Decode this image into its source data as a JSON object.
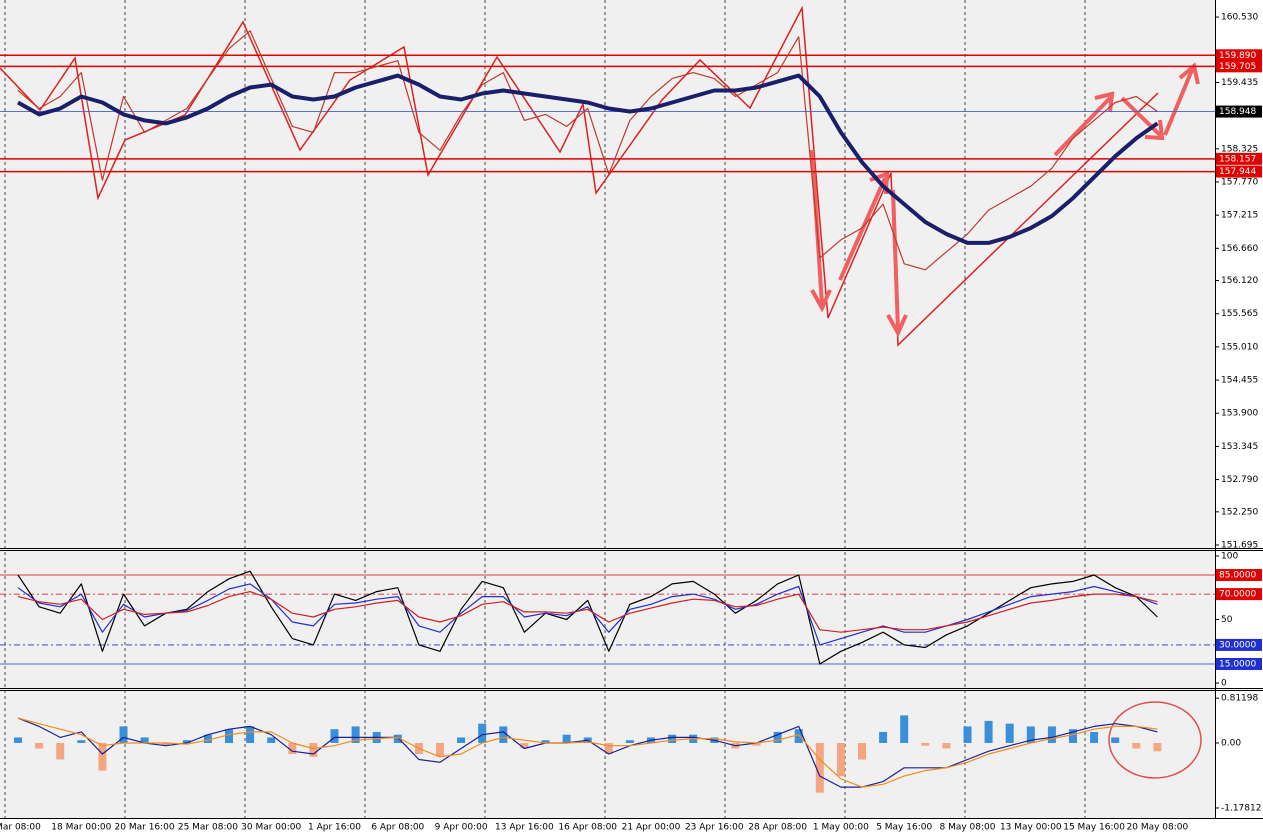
{
  "chart_data": [
    {
      "type": "line",
      "categories": [
        "Mar 08:00",
        null,
        null,
        "18 Mar 00:00",
        null,
        null,
        "20 Mar 16:00",
        null,
        null,
        "25 Mar 08:00",
        null,
        null,
        "30 Mar 00:00",
        null,
        null,
        "1 Apr 16:00",
        null,
        null,
        "6 Apr 08:00",
        null,
        null,
        "9 Apr 00:00",
        null,
        null,
        "13 Apr 16:00",
        null,
        null,
        "16 Apr 08:00",
        null,
        null,
        "21 Apr 00:00",
        null,
        null,
        "23 Apr 16:00",
        null,
        null,
        "28 Apr 08:00",
        null,
        null,
        "1 May 00:00",
        null,
        null,
        "5 May 16:00",
        null,
        null,
        "8 May 08:00",
        null,
        null,
        "13 May 00:00",
        null,
        null,
        "15 May 16:00",
        null,
        null,
        "20 May 08:00"
      ],
      "series": [
        {
          "color": "#c0392b",
          "values": [
            159.3,
            159.0,
            159.2,
            159.6,
            157.8,
            159.2,
            158.6,
            158.8,
            159.0,
            159.5,
            160.0,
            160.3,
            159.5,
            158.7,
            158.6,
            159.6,
            159.6,
            159.7,
            159.8,
            158.6,
            158.3,
            158.9,
            159.4,
            159.6,
            158.8,
            158.9,
            158.7,
            159.0,
            157.9,
            158.8,
            159.2,
            159.5,
            159.6,
            159.5,
            159.2,
            159.4,
            159.6,
            160.2,
            156.5,
            156.8,
            157.0,
            157.4,
            156.4,
            156.3,
            156.6,
            156.9,
            157.3,
            157.5,
            157.7,
            158.0,
            158.5,
            158.8,
            159.1,
            159.2,
            158.95
          ]
        },
        {
          "color": "#1a1f6b",
          "width": 4,
          "values": [
            159.1,
            158.9,
            159.0,
            159.2,
            159.1,
            158.9,
            158.8,
            158.75,
            158.85,
            159.0,
            159.2,
            159.35,
            159.4,
            159.2,
            159.15,
            159.2,
            159.35,
            159.45,
            159.55,
            159.4,
            159.2,
            159.15,
            159.25,
            159.3,
            159.25,
            159.2,
            159.15,
            159.1,
            159.0,
            158.95,
            159.0,
            159.1,
            159.2,
            159.3,
            159.3,
            159.35,
            159.45,
            159.55,
            159.2,
            158.6,
            158.1,
            157.7,
            157.4,
            157.1,
            156.9,
            156.75,
            156.75,
            156.85,
            157.0,
            157.2,
            157.5,
            157.85,
            158.2,
            158.5,
            158.75
          ]
        }
      ],
      "ylim": [
        151.645,
        160.815
      ],
      "yticks": [
        {
          "value": 160.53,
          "label": "160.530"
        },
        {
          "value": 159.435,
          "label": "159.435"
        },
        {
          "value": 158.325,
          "label": "158.325"
        },
        {
          "value": 157.77,
          "label": "157.770"
        },
        {
          "value": 157.215,
          "label": "157.215"
        },
        {
          "value": 156.66,
          "label": "156.660"
        },
        {
          "value": 156.12,
          "label": "156.120"
        },
        {
          "value": 155.565,
          "label": "155.565"
        },
        {
          "value": 155.01,
          "label": "155.010"
        },
        {
          "value": 154.455,
          "label": "154.455"
        },
        {
          "value": 153.9,
          "label": "153.900"
        },
        {
          "value": 153.345,
          "label": "153.345"
        },
        {
          "value": 152.79,
          "label": "152.790"
        },
        {
          "value": 152.25,
          "label": "152.250"
        },
        {
          "value": 151.695,
          "label": "151.695"
        }
      ],
      "levels": [
        {
          "value": 159.89,
          "label": "159.890",
          "color": "#e00000",
          "style": "solid"
        },
        {
          "value": 159.705,
          "label": "159.705",
          "color": "#e00000",
          "style": "solid"
        },
        {
          "value": 158.948,
          "label": "158.948",
          "color": "#4060d0",
          "style": "solid",
          "box": "#000000"
        },
        {
          "value": 158.157,
          "label": "158.157",
          "color": "#e00000",
          "style": "solid"
        },
        {
          "value": 157.944,
          "label": "157.944",
          "color": "#e00000",
          "style": "solid"
        }
      ]
    },
    {
      "type": "line",
      "series": [
        {
          "color": "#000000",
          "values": [
            85,
            60,
            55,
            78,
            25,
            70,
            45,
            55,
            58,
            72,
            82,
            88,
            60,
            35,
            30,
            70,
            65,
            72,
            75,
            30,
            25,
            58,
            80,
            75,
            40,
            55,
            50,
            65,
            25,
            62,
            68,
            78,
            80,
            70,
            55,
            65,
            78,
            85,
            15,
            25,
            32,
            40,
            30,
            28,
            38,
            45,
            55,
            65,
            75,
            78,
            80,
            85,
            75,
            68,
            52
          ]
        },
        {
          "color": "#2030d0",
          "values": [
            75,
            63,
            60,
            70,
            40,
            62,
            52,
            55,
            57,
            65,
            74,
            78,
            66,
            48,
            45,
            62,
            63,
            66,
            68,
            45,
            40,
            55,
            68,
            68,
            52,
            55,
            53,
            60,
            40,
            58,
            62,
            68,
            70,
            66,
            58,
            62,
            70,
            76,
            30,
            35,
            40,
            45,
            40,
            40,
            45,
            50,
            56,
            62,
            68,
            70,
            72,
            76,
            72,
            68,
            62
          ]
        },
        {
          "color": "#d02020",
          "values": [
            68,
            64,
            62,
            66,
            50,
            58,
            54,
            55,
            56,
            61,
            68,
            72,
            66,
            55,
            52,
            58,
            60,
            63,
            65,
            52,
            48,
            53,
            62,
            64,
            56,
            56,
            55,
            58,
            48,
            55,
            59,
            63,
            66,
            65,
            60,
            61,
            66,
            70,
            42,
            40,
            42,
            44,
            42,
            42,
            45,
            48,
            53,
            58,
            63,
            65,
            68,
            70,
            70,
            68,
            64
          ]
        }
      ],
      "ylim": [
        -3.9,
        104.7
      ],
      "yticks": [
        100,
        50,
        0
      ],
      "levels": [
        {
          "value": 85,
          "label": "85.0000",
          "color": "#e00000",
          "style": "solid",
          "box": "#e00000"
        },
        {
          "value": 70,
          "label": "70.0000",
          "color": "#e00000",
          "style": "dashdot",
          "box": "#e00000"
        },
        {
          "value": 30,
          "label": "30.0000",
          "color": "#2030d0",
          "style": "dashdot",
          "box": "#2030d0"
        },
        {
          "value": 15,
          "label": "15.0000",
          "color": "#2030d0",
          "style": "solid",
          "box": "#2030d0"
        }
      ]
    },
    {
      "type": "bar",
      "histogram": {
        "color": "#3a8fd8",
        "negative_color": "#f4a582",
        "values": [
          0.1,
          -0.1,
          -0.3,
          0.05,
          -0.5,
          0.3,
          0.1,
          -0.05,
          0.05,
          0.15,
          0.25,
          0.3,
          0.1,
          -0.2,
          -0.25,
          0.25,
          0.3,
          0.2,
          0.15,
          -0.2,
          -0.25,
          0.1,
          0.35,
          0.3,
          -0.1,
          0.05,
          0.15,
          0.1,
          -0.2,
          0.05,
          0.1,
          0.15,
          0.15,
          0.1,
          -0.1,
          -0.05,
          0.2,
          0.25,
          -0.9,
          -0.6,
          -0.3,
          0.2,
          0.5,
          -0.05,
          -0.1,
          0.3,
          0.4,
          0.35,
          0.3,
          0.3,
          0.25,
          0.2,
          0.1,
          -0.1,
          -0.15
        ]
      },
      "series": [
        {
          "color": "#1a1f9b",
          "values": [
            0.45,
            0.3,
            0.1,
            0.2,
            -0.2,
            0.1,
            0.0,
            -0.05,
            0.0,
            0.15,
            0.25,
            0.3,
            0.15,
            -0.15,
            -0.2,
            0.1,
            0.1,
            0.1,
            0.1,
            -0.3,
            -0.35,
            -0.1,
            0.15,
            0.2,
            -0.1,
            0.0,
            0.0,
            0.05,
            -0.2,
            -0.05,
            0.05,
            0.1,
            0.1,
            0.05,
            -0.05,
            0.0,
            0.15,
            0.3,
            -0.6,
            -0.8,
            -0.8,
            -0.7,
            -0.45,
            -0.45,
            -0.45,
            -0.3,
            -0.15,
            -0.05,
            0.05,
            0.1,
            0.2,
            0.3,
            0.35,
            0.3,
            0.2
          ]
        },
        {
          "color": "#f28c1a",
          "values": [
            0.45,
            0.35,
            0.25,
            0.15,
            -0.05,
            0.0,
            0.0,
            0.0,
            -0.02,
            0.05,
            0.15,
            0.2,
            0.2,
            0.0,
            -0.1,
            -0.05,
            0.05,
            0.08,
            0.1,
            -0.1,
            -0.25,
            -0.2,
            0.0,
            0.1,
            0.05,
            0.0,
            0.0,
            0.02,
            -0.05,
            -0.05,
            0.0,
            0.05,
            0.08,
            0.08,
            0.02,
            0.0,
            0.05,
            0.15,
            -0.3,
            -0.65,
            -0.8,
            -0.75,
            -0.6,
            -0.5,
            -0.45,
            -0.35,
            -0.2,
            -0.1,
            0.0,
            0.08,
            0.15,
            0.25,
            0.3,
            0.3,
            0.25
          ]
        }
      ],
      "ylim": [
        -1.36,
        0.96
      ],
      "yticks": [
        0.81198,
        {
          "value": 0,
          "label": "0.00"
        },
        -1.17812
      ]
    }
  ]
}
